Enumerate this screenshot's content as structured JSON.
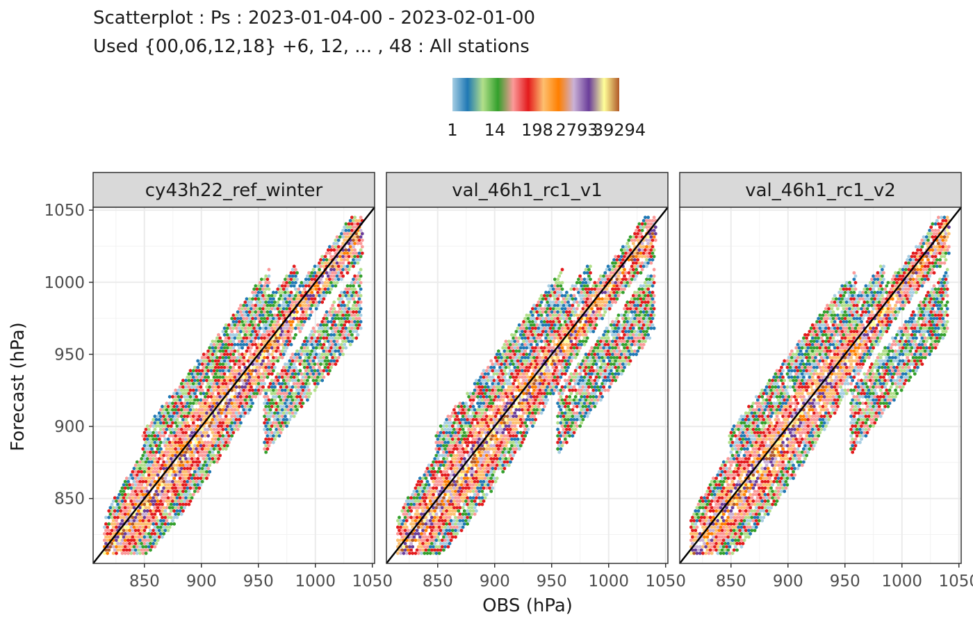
{
  "title": "Scatterplot : Ps : 2023-01-04-00 - 2023-02-01-00",
  "subtitle": "Used {00,06,12,18} +6, 12, ... , 48 : All stations",
  "legend": {
    "labels": [
      "1",
      "14",
      "198",
      "2793",
      "39294"
    ],
    "colors": [
      "#A6CEE3",
      "#1F78B4",
      "#B2DF8A",
      "#33A02C",
      "#FB9A99",
      "#E31A1C",
      "#FDBF6F",
      "#FF7F00",
      "#CAB2D6",
      "#6A3D9A",
      "#FFFF99",
      "#B15928"
    ]
  },
  "chart_data": {
    "type": "hexbin",
    "xlabel": "OBS (hPa)",
    "ylabel": "Forecast (hPa)",
    "xlim": [
      805,
      1052
    ],
    "ylim": [
      805,
      1052
    ],
    "x_ticks": [
      "850",
      "900",
      "950",
      "1000",
      "1050"
    ],
    "y_ticks": [
      "850",
      "900",
      "950",
      "1000",
      "1050"
    ],
    "reference_line": "y = x",
    "panels": [
      {
        "name": "cy43h22_ref_winter"
      },
      {
        "name": "val_46h1_rc1_v1"
      },
      {
        "name": "val_46h1_rc1_v2"
      }
    ],
    "density_regions": [
      {
        "x_range": [
          815,
          1040
        ],
        "along_diagonal": true,
        "level": "high"
      },
      {
        "x_range": [
          850,
          880
        ],
        "y_range": [
          880,
          905
        ],
        "level": "low"
      },
      {
        "x_range": [
          960,
          1040
        ],
        "y_range": [
          900,
          975
        ],
        "level": "low"
      }
    ]
  }
}
